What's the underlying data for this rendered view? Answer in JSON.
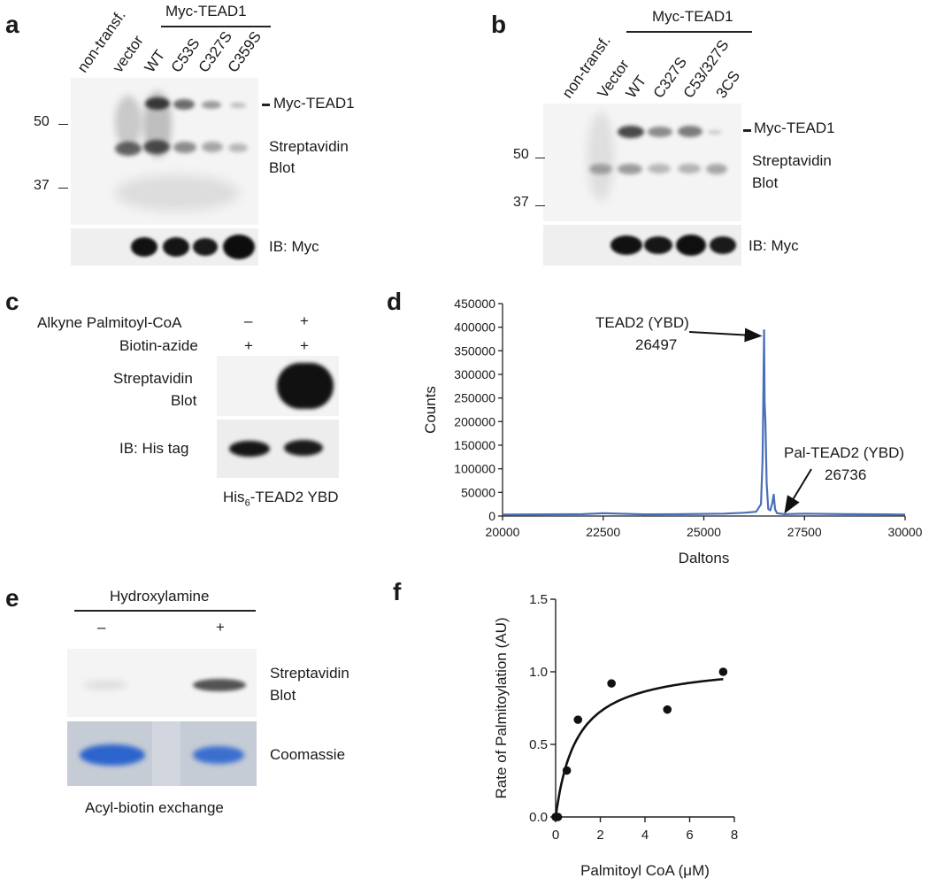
{
  "panels": {
    "a": {
      "letter": "a",
      "group_label": "Myc-TEAD1",
      "lanes": [
        "non-transf.",
        "vector",
        "WT",
        "C53S",
        "C327S",
        "C359S"
      ],
      "band_label": "Myc-TEAD1",
      "blot_label_1": "Streptavidin",
      "blot_label_2": "Blot",
      "ib_label": "IB: Myc",
      "markers": [
        "50",
        "37"
      ]
    },
    "b": {
      "letter": "b",
      "group_label": "Myc-TEAD1",
      "lanes": [
        "non-transf.",
        "Vector",
        "WT",
        "C327S",
        "C53/327S",
        "3CS"
      ],
      "band_label": "Myc-TEAD1",
      "blot_label_1": "Streptavidin",
      "blot_label_2": "Blot",
      "ib_label": "IB: Myc",
      "markers": [
        "50",
        "37"
      ]
    },
    "c": {
      "letter": "c",
      "row1_label": "Alkyne Palmitoyl-CoA",
      "row1_signs": [
        "–",
        "+"
      ],
      "row2_label": "Biotin-azide",
      "row2_signs": [
        "+",
        "+"
      ],
      "blot_label_1": "Streptavidin",
      "blot_label_2": "Blot",
      "ib_label": "IB: His tag",
      "caption_pre": "His",
      "caption_sub": "6",
      "caption_post": "-TEAD2 YBD"
    },
    "d": {
      "letter": "d",
      "annotation_1_name": "TEAD2 (YBD)",
      "annotation_1_value": "26497",
      "annotation_2_name": "Pal-TEAD2 (YBD)",
      "annotation_2_value": "26736"
    },
    "e": {
      "letter": "e",
      "treatment_label": "Hydroxylamine",
      "signs": [
        "–",
        "+"
      ],
      "blot_label_1": "Streptavidin",
      "blot_label_2": "Blot",
      "stain_label": "Coomassie",
      "caption": "Acyl-biotin exchange"
    },
    "f": {
      "letter": "f"
    }
  },
  "chart_data": [
    {
      "panel": "d",
      "type": "line",
      "xlabel": "Daltons",
      "ylabel": "Counts",
      "xlim": [
        20000,
        30000
      ],
      "ylim": [
        0,
        450000
      ],
      "xticks": [
        "20000",
        "22500",
        "25000",
        "27500",
        "30000"
      ],
      "yticks": [
        "0",
        "50000",
        "100000",
        "150000",
        "200000",
        "250000",
        "300000",
        "350000",
        "400000",
        "450000"
      ],
      "series_color": "#4a6fb5",
      "x": [
        20000,
        21000,
        22000,
        22500,
        23500,
        24500,
        25500,
        26000,
        26300,
        26420,
        26460,
        26480,
        26497,
        26510,
        26530,
        26560,
        26600,
        26650,
        26700,
        26736,
        26770,
        26820,
        27000,
        27500,
        28500,
        29500,
        30000
      ],
      "y": [
        3000,
        3500,
        4000,
        6000,
        3500,
        4000,
        5000,
        7000,
        9000,
        25000,
        120000,
        260000,
        393000,
        240000,
        200000,
        70000,
        15000,
        12000,
        28000,
        45000,
        14000,
        6000,
        4000,
        5000,
        4000,
        3500,
        3000
      ],
      "peaks": [
        {
          "x": 26497,
          "y": 393000
        },
        {
          "x": 26736,
          "y": 45000
        }
      ]
    },
    {
      "panel": "f",
      "type": "scatter",
      "xlabel": "Palmitoyl CoA (μM)",
      "ylabel": "Rate of Palmitoylation (AU)",
      "xlim": [
        0,
        8
      ],
      "ylim": [
        0,
        1.5
      ],
      "xticks": [
        "0",
        "2",
        "4",
        "6",
        "8"
      ],
      "yticks": [
        "0.0",
        "0.5",
        "1.0",
        "1.5"
      ],
      "points": [
        {
          "x": 0.0,
          "y": 0.0
        },
        {
          "x": 0.1,
          "y": 0.0
        },
        {
          "x": 0.5,
          "y": 0.32
        },
        {
          "x": 1.0,
          "y": 0.67
        },
        {
          "x": 2.5,
          "y": 0.92
        },
        {
          "x": 5.0,
          "y": 0.74
        },
        {
          "x": 7.5,
          "y": 1.0
        }
      ],
      "fit": {
        "model": "Michaelis-Menten",
        "vmax": 1.07,
        "km": 0.95
      }
    }
  ]
}
